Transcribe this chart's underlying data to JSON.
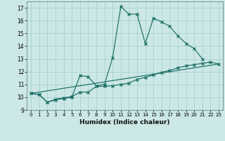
{
  "xlabel": "Humidex (Indice chaleur)",
  "xlim": [
    -0.5,
    23.5
  ],
  "ylim": [
    9,
    17.5
  ],
  "yticks": [
    9,
    10,
    11,
    12,
    13,
    14,
    15,
    16,
    17
  ],
  "xticks": [
    0,
    1,
    2,
    3,
    4,
    5,
    6,
    7,
    8,
    9,
    10,
    11,
    12,
    13,
    14,
    15,
    16,
    17,
    18,
    19,
    20,
    21,
    22,
    23
  ],
  "bg_color": "#cce8e6",
  "grid_color": "#aad4d1",
  "line_color": "#1a6e65",
  "line1_x": [
    0,
    1,
    2,
    3,
    4,
    5,
    6,
    7,
    8,
    9,
    10,
    11,
    12,
    13,
    14,
    15,
    16,
    17,
    18,
    19,
    20,
    21
  ],
  "line1_y": [
    10.3,
    10.2,
    9.6,
    9.8,
    9.9,
    10.0,
    11.7,
    11.6,
    10.9,
    11.0,
    13.1,
    17.1,
    16.5,
    16.5,
    14.2,
    16.2,
    15.9,
    15.55,
    14.8,
    14.2,
    13.8,
    13.0
  ],
  "line2_x": [
    0,
    1,
    2,
    3,
    4,
    5,
    6,
    7,
    8,
    9,
    10,
    11,
    12,
    13,
    14,
    15,
    16,
    17,
    18,
    19,
    20,
    21,
    22,
    23
  ],
  "line2_y": [
    10.3,
    10.2,
    9.6,
    9.85,
    9.95,
    10.05,
    10.4,
    10.4,
    10.85,
    10.85,
    10.9,
    11.0,
    11.1,
    11.4,
    11.55,
    11.75,
    11.95,
    12.1,
    12.3,
    12.45,
    12.55,
    12.65,
    12.75,
    12.6
  ],
  "line3_x": [
    0,
    23
  ],
  "line3_y": [
    10.3,
    12.6
  ]
}
